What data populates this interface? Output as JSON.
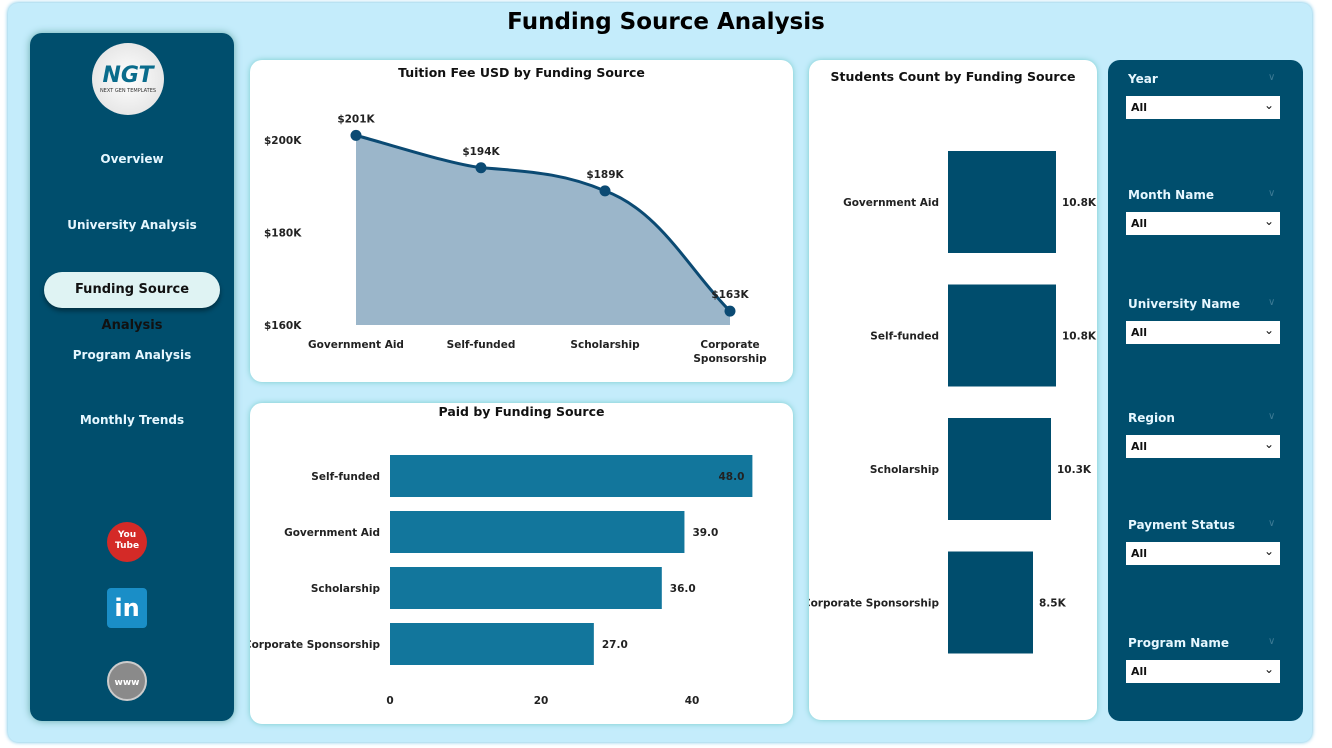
{
  "title": "Funding Source Analysis",
  "logo": {
    "text": "NGT",
    "sub": "NEXT GEN TEMPLATES"
  },
  "nav": [
    {
      "label": "Overview"
    },
    {
      "label": "University Analysis"
    },
    {
      "label": "Funding Source Analysis",
      "active": true
    },
    {
      "label": "Program Analysis"
    },
    {
      "label": "Monthly Trends"
    }
  ],
  "social": [
    {
      "icon": "youtube-icon",
      "label": "You Tube"
    },
    {
      "icon": "linkedin-icon",
      "label": "in"
    },
    {
      "icon": "globe-icon",
      "label": "www"
    }
  ],
  "filters": [
    {
      "label": "Year",
      "value": "All"
    },
    {
      "label": "Month Name",
      "value": "All"
    },
    {
      "label": "University Name",
      "value": "All"
    },
    {
      "label": "Region",
      "value": "All"
    },
    {
      "label": "Payment Status",
      "value": "All"
    },
    {
      "label": "Program Name",
      "value": "All"
    }
  ],
  "chart_data": [
    {
      "type": "area",
      "title": "Tuition Fee USD by Funding Source",
      "categories": [
        "Government Aid",
        "Self-funded",
        "Scholarship",
        "Corporate Sponsorship"
      ],
      "values": [
        201,
        194,
        189,
        163
      ],
      "data_labels": [
        "$201K",
        "$194K",
        "$189K",
        "$163K"
      ],
      "yticks": [
        "$160K",
        "$180K",
        "$200K"
      ],
      "ylim": [
        160,
        200
      ],
      "color": "#0b4a73",
      "fill": "#9bb6ca"
    },
    {
      "type": "bar",
      "orientation": "horizontal",
      "title": "Paid by Funding Source",
      "categories": [
        "Self-funded",
        "Government Aid",
        "Scholarship",
        "Corporate Sponsorship"
      ],
      "values": [
        48,
        39,
        36,
        27
      ],
      "data_labels": [
        "48.0",
        "39.0",
        "36.0",
        "27.0"
      ],
      "xticks": [
        "0",
        "20",
        "40"
      ],
      "xlim": [
        0,
        40
      ],
      "color": "#12769c"
    },
    {
      "type": "bar",
      "orientation": "horizontal",
      "title": "Students Count by Funding Source",
      "categories": [
        "Government Aid",
        "Self-funded",
        "Scholarship",
        "Corporate Sponsorship"
      ],
      "values": [
        10.8,
        10.8,
        10.3,
        8.5
      ],
      "data_labels": [
        "10.8K",
        "10.8K",
        "10.3K",
        "8.5K"
      ],
      "color": "#004d6d"
    }
  ]
}
